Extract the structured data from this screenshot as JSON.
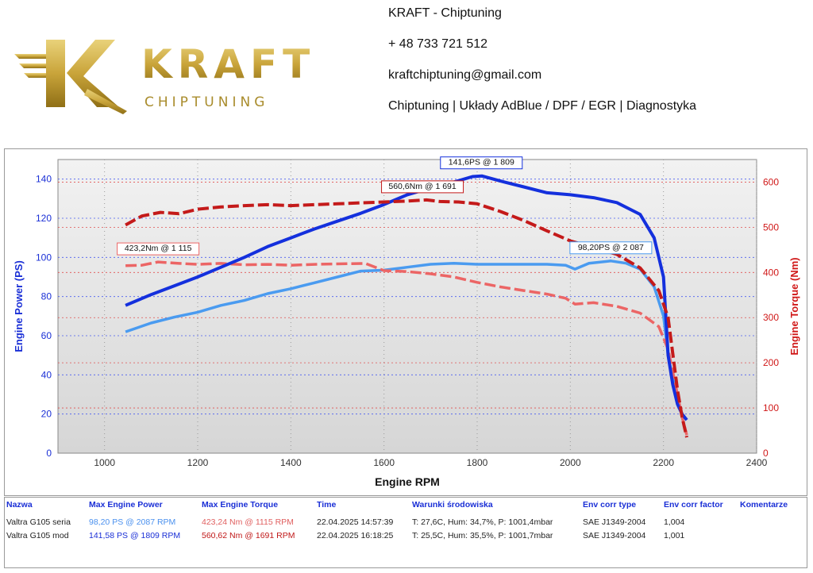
{
  "header": {
    "logo_text": "KRAFT",
    "logo_subtext": "CHIPTUNING",
    "company": "KRAFT - Chiptuning",
    "phone": "+ 48 733 721 512",
    "email": "kraftchiptuning@gmail.com",
    "services": "Chiptuning | Układy AdBlue / DPF / EGR | Diagnostyka"
  },
  "chart_data": {
    "type": "line",
    "xlabel": "Engine RPM",
    "ylabel_left": "Engine Power (PS)",
    "ylabel_right": "Engine Torque (Nm)",
    "xlim": [
      900,
      2400
    ],
    "ylim_left": [
      0,
      150
    ],
    "ylim_right": [
      0,
      650
    ],
    "x_ticks": [
      "1000",
      "1200",
      "1400",
      "1600",
      "1800",
      "2000",
      "2200",
      "2400"
    ],
    "y_left_ticks": [
      "0",
      "20",
      "40",
      "60",
      "80",
      "100",
      "120",
      "140"
    ],
    "y_right_ticks": [
      "0",
      "100",
      "200",
      "300",
      "400",
      "500",
      "600"
    ],
    "grid": true,
    "series": [
      {
        "name": "Valtra G105 mod",
        "metric": "power",
        "axis": "left",
        "color": "#1430dd",
        "dash": false,
        "x": [
          1045,
          1100,
          1150,
          1200,
          1250,
          1300,
          1350,
          1400,
          1450,
          1500,
          1550,
          1600,
          1650,
          1700,
          1750,
          1790,
          1810,
          1850,
          1900,
          1950,
          2000,
          2050,
          2100,
          2150,
          2180,
          2200,
          2210,
          2220,
          2230,
          2240,
          2250
        ],
        "y": [
          75.5,
          81,
          85.5,
          90,
          95,
          100,
          105.5,
          110,
          114.5,
          118.5,
          122.5,
          127,
          132,
          135.5,
          138.5,
          141.3,
          141.6,
          139,
          136,
          133,
          132,
          130.5,
          128,
          122,
          110,
          90,
          50,
          35,
          25,
          20,
          17
        ]
      },
      {
        "name": "Valtra G105 seria",
        "metric": "power",
        "axis": "left",
        "color": "#4a9bf0",
        "dash": false,
        "x": [
          1045,
          1100,
          1150,
          1200,
          1250,
          1300,
          1350,
          1400,
          1450,
          1500,
          1550,
          1600,
          1650,
          1700,
          1750,
          1800,
          1850,
          1900,
          1950,
          1990,
          2010,
          2040,
          2087,
          2120,
          2150,
          2180,
          2200,
          2210,
          2220,
          2230,
          2240,
          2250
        ],
        "y": [
          62,
          66.5,
          69.5,
          72,
          75.5,
          78,
          81.5,
          84,
          87,
          90,
          93,
          93.5,
          95,
          96.5,
          97,
          96.5,
          96.5,
          96.5,
          96.5,
          96,
          94,
          97,
          98.2,
          97,
          94,
          85,
          70,
          50,
          38,
          28,
          20,
          17
        ]
      },
      {
        "name": "Valtra G105 mod",
        "metric": "torque",
        "axis": "right",
        "color": "#c41a1a",
        "dash": true,
        "x": [
          1045,
          1080,
          1120,
          1160,
          1200,
          1250,
          1300,
          1350,
          1400,
          1450,
          1500,
          1550,
          1600,
          1650,
          1691,
          1720,
          1760,
          1800,
          1850,
          1900,
          1950,
          2000,
          2050,
          2100,
          2150,
          2190,
          2210,
          2220,
          2230,
          2240,
          2250
        ],
        "y": [
          505,
          525,
          533,
          530,
          540,
          545,
          548,
          550,
          548,
          550,
          552,
          554,
          556,
          558,
          560.6,
          557,
          556,
          552,
          535,
          515,
          492,
          470,
          455,
          440,
          410,
          360,
          300,
          220,
          140,
          80,
          35
        ]
      },
      {
        "name": "Valtra G105 seria",
        "metric": "torque",
        "axis": "right",
        "color": "#ec6565",
        "dash": true,
        "x": [
          1045,
          1080,
          1115,
          1160,
          1200,
          1250,
          1300,
          1350,
          1400,
          1450,
          1500,
          1560,
          1600,
          1650,
          1700,
          1750,
          1800,
          1850,
          1900,
          1950,
          1990,
          2010,
          2050,
          2100,
          2150,
          2190,
          2210,
          2220,
          2230,
          2240,
          2250
        ],
        "y": [
          415,
          416,
          423.2,
          420,
          418,
          420,
          417,
          418,
          416,
          418,
          419,
          420,
          404,
          402,
          397,
          390,
          378,
          368,
          360,
          352,
          343,
          330,
          333,
          325,
          310,
          280,
          230,
          180,
          130,
          80,
          40
        ]
      }
    ],
    "annotations": [
      {
        "text": "141,6PS @ 1 809",
        "x": 1809,
        "y": 141.6,
        "axis": "left",
        "border": "#1430dd"
      },
      {
        "text": "560,6Nm @ 1 691",
        "x": 1691,
        "y": 560.6,
        "axis": "right",
        "border": "#c41a1a"
      },
      {
        "text": "98,20PS @ 2 087",
        "x": 2087,
        "y": 98.2,
        "axis": "left",
        "border": "#4a9bf0"
      },
      {
        "text": "423,2Nm @ 1 115",
        "x": 1115,
        "y": 423.2,
        "axis": "right",
        "border": "#ec6565"
      }
    ]
  },
  "results": {
    "headers": [
      "Nazwa",
      "Max Engine Power",
      "Max Engine Torque",
      "Time",
      "Warunki środowiska",
      "Env corr type",
      "Env corr factor",
      "Komentarze"
    ],
    "rows": [
      [
        "Valtra G105 seria",
        "98,20 PS @ 2087 RPM",
        "423,24 Nm @ 1115 RPM",
        "22.04.2025 14:57:39",
        "T: 27,6C, Hum: 34,7%, P: 1001,4mbar",
        "SAE J1349-2004",
        "1,004",
        ""
      ],
      [
        "Valtra G105 mod",
        "141,58 PS @ 1809 RPM",
        "560,62 Nm @ 1691 RPM",
        "22.04.2025 16:18:25",
        "T: 25,5C, Hum: 35,5%, P: 1001,7mbar",
        "SAE J1349-2004",
        "1,001",
        ""
      ]
    ]
  }
}
